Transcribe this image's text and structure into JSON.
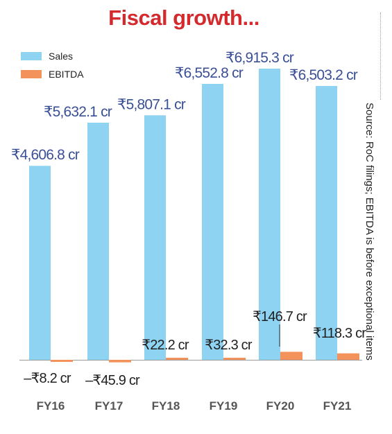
{
  "title": "Fiscal growth...",
  "source_note": "Source: RoC filings; EBITDA is before exceptional items",
  "colors": {
    "title": "#d42a2e",
    "sales": "#8fd3f3",
    "ebitda": "#f4925c",
    "sales_label": "#3a4f96",
    "ebitda_label": "#1f1f1f",
    "axis_label": "#555555"
  },
  "legend": {
    "items": [
      {
        "label": "Sales",
        "color": "#8fd3f3"
      },
      {
        "label": "EBITDA",
        "color": "#f4925c"
      }
    ]
  },
  "chart_data": {
    "type": "bar",
    "categories": [
      "FY16",
      "FY17",
      "FY18",
      "FY19",
      "FY20",
      "FY21"
    ],
    "series": [
      {
        "name": "Sales",
        "values": [
          4606.8,
          5632.1,
          5807.1,
          6552.8,
          6915.3,
          6503.2
        ],
        "labels": [
          "₹4,606.8 cr",
          "₹5,632.1 cr",
          "₹5,807.1 cr",
          "₹6,552.8 cr",
          "₹6,915.3 cr",
          "₹6,503.2 cr"
        ]
      },
      {
        "name": "EBITDA",
        "values": [
          -8.2,
          -45.9,
          22.2,
          32.3,
          146.7,
          118.3
        ],
        "labels": [
          "–₹8.2 cr",
          "–₹45.9 cr",
          "₹22.2 cr",
          "₹32.3 cr",
          "₹146.7 cr",
          "₹118.3 cr"
        ]
      }
    ],
    "unit": "₹ cr",
    "grid": false,
    "legend_position": "top-left"
  }
}
